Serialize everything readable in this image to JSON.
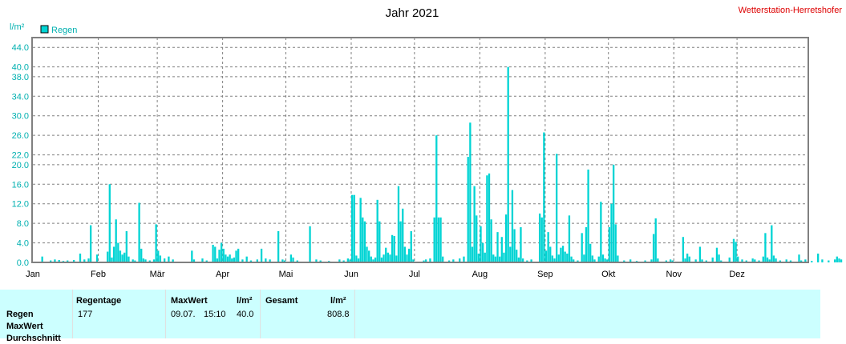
{
  "chart_data": {
    "type": "bar",
    "title": "Jahr 2021",
    "station": "Wetterstation-Herretshofer",
    "ylabel": "l/m²",
    "ylim": [
      0,
      46
    ],
    "yticks": [
      "0.0",
      "4.0",
      "8.0",
      "12.0",
      "16.0",
      "20.0",
      "22.0",
      "26.0",
      "30.0",
      "34.0",
      "38.0",
      "40.0",
      "44.0"
    ],
    "months": [
      "Jan",
      "Feb",
      "Mär",
      "Apr",
      "Mai",
      "Jun",
      "Jul",
      "Aug",
      "Sep",
      "Okt",
      "Nov",
      "Dez"
    ],
    "grid": true,
    "series": [
      {
        "name": "Regen",
        "color": "#00d4d4",
        "points": [
          [
            4,
            1.2
          ],
          [
            8,
            0.4
          ],
          [
            10,
            0.6
          ],
          [
            12,
            0.5
          ],
          [
            14,
            0.3
          ],
          [
            16,
            0.4
          ],
          [
            19,
            0.5
          ],
          [
            22,
            1.8
          ],
          [
            24,
            0.6
          ],
          [
            26,
            0.8
          ],
          [
            27,
            7.6
          ],
          [
            30,
            1.6
          ],
          [
            35,
            2.2
          ],
          [
            36,
            16.0
          ],
          [
            37,
            1.0
          ],
          [
            38,
            3.2
          ],
          [
            39,
            8.8
          ],
          [
            40,
            4.0
          ],
          [
            41,
            2.4
          ],
          [
            42,
            1.6
          ],
          [
            43,
            2.0
          ],
          [
            44,
            6.4
          ],
          [
            45,
            1.2
          ],
          [
            47,
            0.6
          ],
          [
            48,
            0.4
          ],
          [
            50,
            12.2
          ],
          [
            51,
            2.8
          ],
          [
            52,
            0.8
          ],
          [
            53,
            0.6
          ],
          [
            55,
            0.4
          ],
          [
            57,
            0.6
          ],
          [
            58,
            7.8
          ],
          [
            59,
            2.4
          ],
          [
            60,
            1.4
          ],
          [
            62,
            0.8
          ],
          [
            64,
            1.2
          ],
          [
            66,
            0.6
          ],
          [
            75,
            2.4
          ],
          [
            76,
            0.6
          ],
          [
            80,
            0.8
          ],
          [
            82,
            0.4
          ],
          [
            85,
            3.6
          ],
          [
            86,
            3.2
          ],
          [
            87,
            0.8
          ],
          [
            88,
            2.6
          ],
          [
            89,
            4.0
          ],
          [
            90,
            2.8
          ],
          [
            91,
            1.6
          ],
          [
            92,
            1.2
          ],
          [
            93,
            1.6
          ],
          [
            94,
            0.8
          ],
          [
            95,
            1.0
          ],
          [
            96,
            2.4
          ],
          [
            97,
            2.8
          ],
          [
            99,
            0.6
          ],
          [
            101,
            1.2
          ],
          [
            103,
            0.4
          ],
          [
            106,
            0.6
          ],
          [
            108,
            2.8
          ],
          [
            110,
            0.8
          ],
          [
            112,
            0.6
          ],
          [
            116,
            6.4
          ],
          [
            118,
            0.6
          ],
          [
            119,
            0.4
          ],
          [
            122,
            1.6
          ],
          [
            123,
            1.0
          ],
          [
            125,
            0.4
          ],
          [
            131,
            7.4
          ],
          [
            134,
            0.6
          ],
          [
            136,
            0.4
          ],
          [
            140,
            0.3
          ],
          [
            145,
            0.6
          ],
          [
            147,
            0.4
          ],
          [
            149,
            0.8
          ],
          [
            150,
            0.6
          ],
          [
            151,
            13.8
          ],
          [
            152,
            13.8
          ],
          [
            153,
            1.4
          ],
          [
            154,
            0.8
          ],
          [
            155,
            13.2
          ],
          [
            156,
            9.2
          ],
          [
            157,
            8.4
          ],
          [
            158,
            3.2
          ],
          [
            159,
            2.4
          ],
          [
            160,
            1.2
          ],
          [
            161,
            0.6
          ],
          [
            162,
            1.0
          ],
          [
            163,
            12.8
          ],
          [
            164,
            8.4
          ],
          [
            165,
            1.0
          ],
          [
            166,
            1.6
          ],
          [
            167,
            3.0
          ],
          [
            168,
            2.0
          ],
          [
            169,
            1.6
          ],
          [
            170,
            5.6
          ],
          [
            171,
            5.4
          ],
          [
            172,
            1.4
          ],
          [
            173,
            15.6
          ],
          [
            174,
            8.4
          ],
          [
            175,
            11.0
          ],
          [
            176,
            3.2
          ],
          [
            177,
            1.6
          ],
          [
            178,
            2.8
          ],
          [
            179,
            6.4
          ],
          [
            180,
            0.6
          ],
          [
            185,
            0.4
          ],
          [
            186,
            0.6
          ],
          [
            188,
            0.8
          ],
          [
            190,
            9.2
          ],
          [
            191,
            26.0
          ],
          [
            192,
            9.2
          ],
          [
            193,
            9.2
          ],
          [
            194,
            1.2
          ],
          [
            197,
            0.4
          ],
          [
            199,
            0.6
          ],
          [
            202,
            0.8
          ],
          [
            204,
            1.2
          ],
          [
            206,
            21.6
          ],
          [
            207,
            28.6
          ],
          [
            208,
            3.2
          ],
          [
            209,
            15.6
          ],
          [
            210,
            9.6
          ],
          [
            211,
            1.8
          ],
          [
            212,
            7.4
          ],
          [
            213,
            4.0
          ],
          [
            214,
            2.0
          ],
          [
            215,
            17.8
          ],
          [
            216,
            18.2
          ],
          [
            217,
            8.8
          ],
          [
            218,
            1.6
          ],
          [
            219,
            1.2
          ],
          [
            220,
            6.2
          ],
          [
            221,
            1.2
          ],
          [
            222,
            5.2
          ],
          [
            223,
            2.0
          ],
          [
            224,
            9.8
          ],
          [
            225,
            40.0
          ],
          [
            226,
            3.2
          ],
          [
            227,
            14.8
          ],
          [
            228,
            6.8
          ],
          [
            229,
            2.6
          ],
          [
            230,
            1.0
          ],
          [
            231,
            7.2
          ],
          [
            232,
            0.8
          ],
          [
            234,
            0.4
          ],
          [
            236,
            0.6
          ],
          [
            240,
            10.0
          ],
          [
            241,
            9.2
          ],
          [
            242,
            26.6
          ],
          [
            243,
            2.4
          ],
          [
            244,
            6.2
          ],
          [
            245,
            3.2
          ],
          [
            246,
            1.4
          ],
          [
            247,
            0.8
          ],
          [
            248,
            22.2
          ],
          [
            249,
            1.6
          ],
          [
            250,
            3.0
          ],
          [
            251,
            3.4
          ],
          [
            252,
            2.2
          ],
          [
            253,
            1.8
          ],
          [
            254,
            9.6
          ],
          [
            255,
            1.2
          ],
          [
            256,
            0.6
          ],
          [
            258,
            0.4
          ],
          [
            260,
            6.0
          ],
          [
            261,
            1.6
          ],
          [
            262,
            7.2
          ],
          [
            263,
            19.0
          ],
          [
            264,
            3.8
          ],
          [
            265,
            1.4
          ],
          [
            266,
            0.6
          ],
          [
            268,
            1.2
          ],
          [
            269,
            12.4
          ],
          [
            270,
            1.6
          ],
          [
            271,
            0.8
          ],
          [
            272,
            0.6
          ],
          [
            273,
            7.2
          ],
          [
            274,
            12.0
          ],
          [
            275,
            20.0
          ],
          [
            276,
            7.8
          ],
          [
            277,
            1.4
          ],
          [
            280,
            0.4
          ],
          [
            283,
            0.6
          ],
          [
            286,
            0.3
          ],
          [
            290,
            0.4
          ],
          [
            293,
            0.6
          ],
          [
            294,
            5.8
          ],
          [
            295,
            9.0
          ],
          [
            296,
            0.8
          ],
          [
            300,
            0.4
          ],
          [
            302,
            0.6
          ],
          [
            303,
            0.4
          ],
          [
            308,
            5.2
          ],
          [
            309,
            0.8
          ],
          [
            310,
            1.8
          ],
          [
            311,
            1.2
          ],
          [
            314,
            0.6
          ],
          [
            316,
            3.2
          ],
          [
            317,
            0.6
          ],
          [
            319,
            0.4
          ],
          [
            322,
            1.0
          ],
          [
            324,
            3.0
          ],
          [
            325,
            1.6
          ],
          [
            326,
            0.4
          ],
          [
            330,
            1.0
          ],
          [
            332,
            4.8
          ],
          [
            333,
            4.2
          ],
          [
            334,
            1.2
          ],
          [
            336,
            0.6
          ],
          [
            338,
            0.4
          ],
          [
            341,
            0.8
          ],
          [
            342,
            0.6
          ],
          [
            344,
            0.4
          ],
          [
            346,
            1.2
          ],
          [
            347,
            6.0
          ],
          [
            348,
            1.0
          ],
          [
            349,
            0.6
          ],
          [
            350,
            7.6
          ],
          [
            351,
            1.4
          ],
          [
            352,
            0.8
          ],
          [
            354,
            0.4
          ],
          [
            357,
            0.6
          ],
          [
            359,
            0.4
          ],
          [
            363,
            1.6
          ],
          [
            364,
            0.4
          ],
          [
            366,
            0.6
          ],
          [
            369,
            0.3
          ],
          [
            372,
            1.8
          ],
          [
            374,
            0.6
          ],
          [
            377,
            0.4
          ],
          [
            380,
            0.6
          ],
          [
            381,
            1.2
          ],
          [
            382,
            0.8
          ],
          [
            383,
            0.6
          ]
        ]
      }
    ]
  },
  "stats": {
    "row_labels": [
      "Regen",
      "MaxWert",
      "Durchschnitt"
    ],
    "regentage": {
      "header": "Regentage",
      "value": "177"
    },
    "maxwert": {
      "header": "MaxWert",
      "unit": "l/m²",
      "date": "09.07.",
      "time": "15:10",
      "value": "40.0"
    },
    "gesamt": {
      "header": "Gesamt",
      "unit": "l/m²",
      "value": "808.8"
    }
  }
}
